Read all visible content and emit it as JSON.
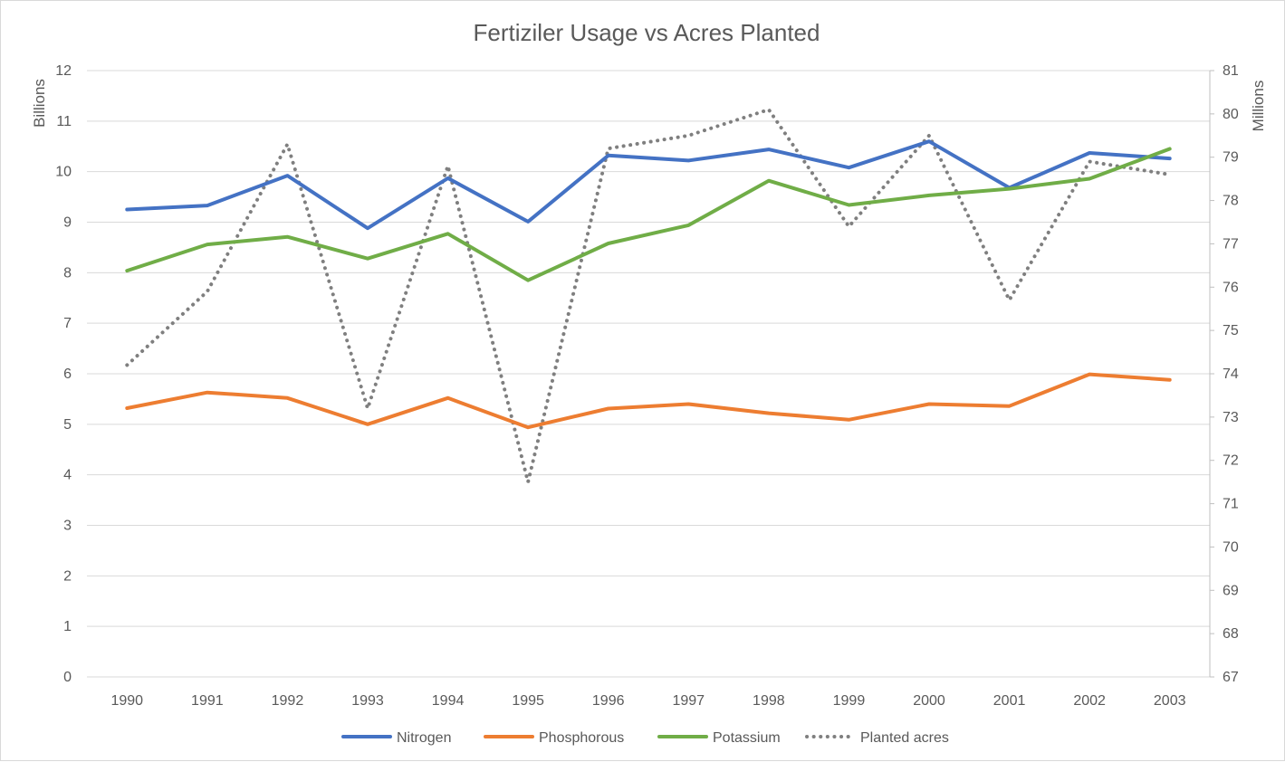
{
  "chart_data": {
    "type": "line",
    "title": "Fertiziler Usage vs Acres Planted",
    "categories": [
      "1990",
      "1991",
      "1992",
      "1993",
      "1994",
      "1995",
      "1996",
      "1997",
      "1998",
      "1999",
      "2000",
      "2001",
      "2002",
      "2003"
    ],
    "y_left": {
      "label": "Billions",
      "ylim": [
        0,
        12
      ],
      "ticks": [
        0,
        1,
        2,
        3,
        4,
        5,
        6,
        7,
        8,
        9,
        10,
        11,
        12
      ]
    },
    "y_right": {
      "label": "Millions",
      "ylim": [
        67,
        81
      ],
      "ticks": [
        67,
        68,
        69,
        70,
        71,
        72,
        73,
        74,
        75,
        76,
        77,
        78,
        79,
        80,
        81
      ]
    },
    "grid": true,
    "legend_position": "bottom",
    "series": [
      {
        "name": "Nitrogen",
        "axis": "left",
        "color": "#4472c4",
        "style": "solid",
        "values": [
          9.25,
          9.33,
          9.92,
          8.88,
          9.87,
          9.01,
          10.32,
          10.22,
          10.44,
          10.08,
          10.6,
          9.68,
          10.37,
          10.26
        ]
      },
      {
        "name": "Phosphorous",
        "axis": "left",
        "color": "#ed7d31",
        "style": "solid",
        "values": [
          5.32,
          5.63,
          5.52,
          5.0,
          5.52,
          4.94,
          5.31,
          5.4,
          5.22,
          5.09,
          5.4,
          5.36,
          5.99,
          5.88
        ]
      },
      {
        "name": "Potassium",
        "axis": "left",
        "color": "#70ad47",
        "style": "solid",
        "values": [
          8.04,
          8.56,
          8.71,
          8.28,
          8.77,
          7.85,
          8.58,
          8.94,
          9.82,
          9.34,
          9.53,
          9.66,
          9.86,
          10.45
        ]
      },
      {
        "name": "Planted acres",
        "axis": "right",
        "color": "#7f7f7f",
        "style": "dotted",
        "values": [
          74.2,
          75.9,
          79.3,
          73.2,
          78.8,
          71.5,
          79.2,
          79.5,
          80.1,
          77.4,
          79.5,
          75.7,
          78.9,
          78.6
        ]
      }
    ]
  }
}
